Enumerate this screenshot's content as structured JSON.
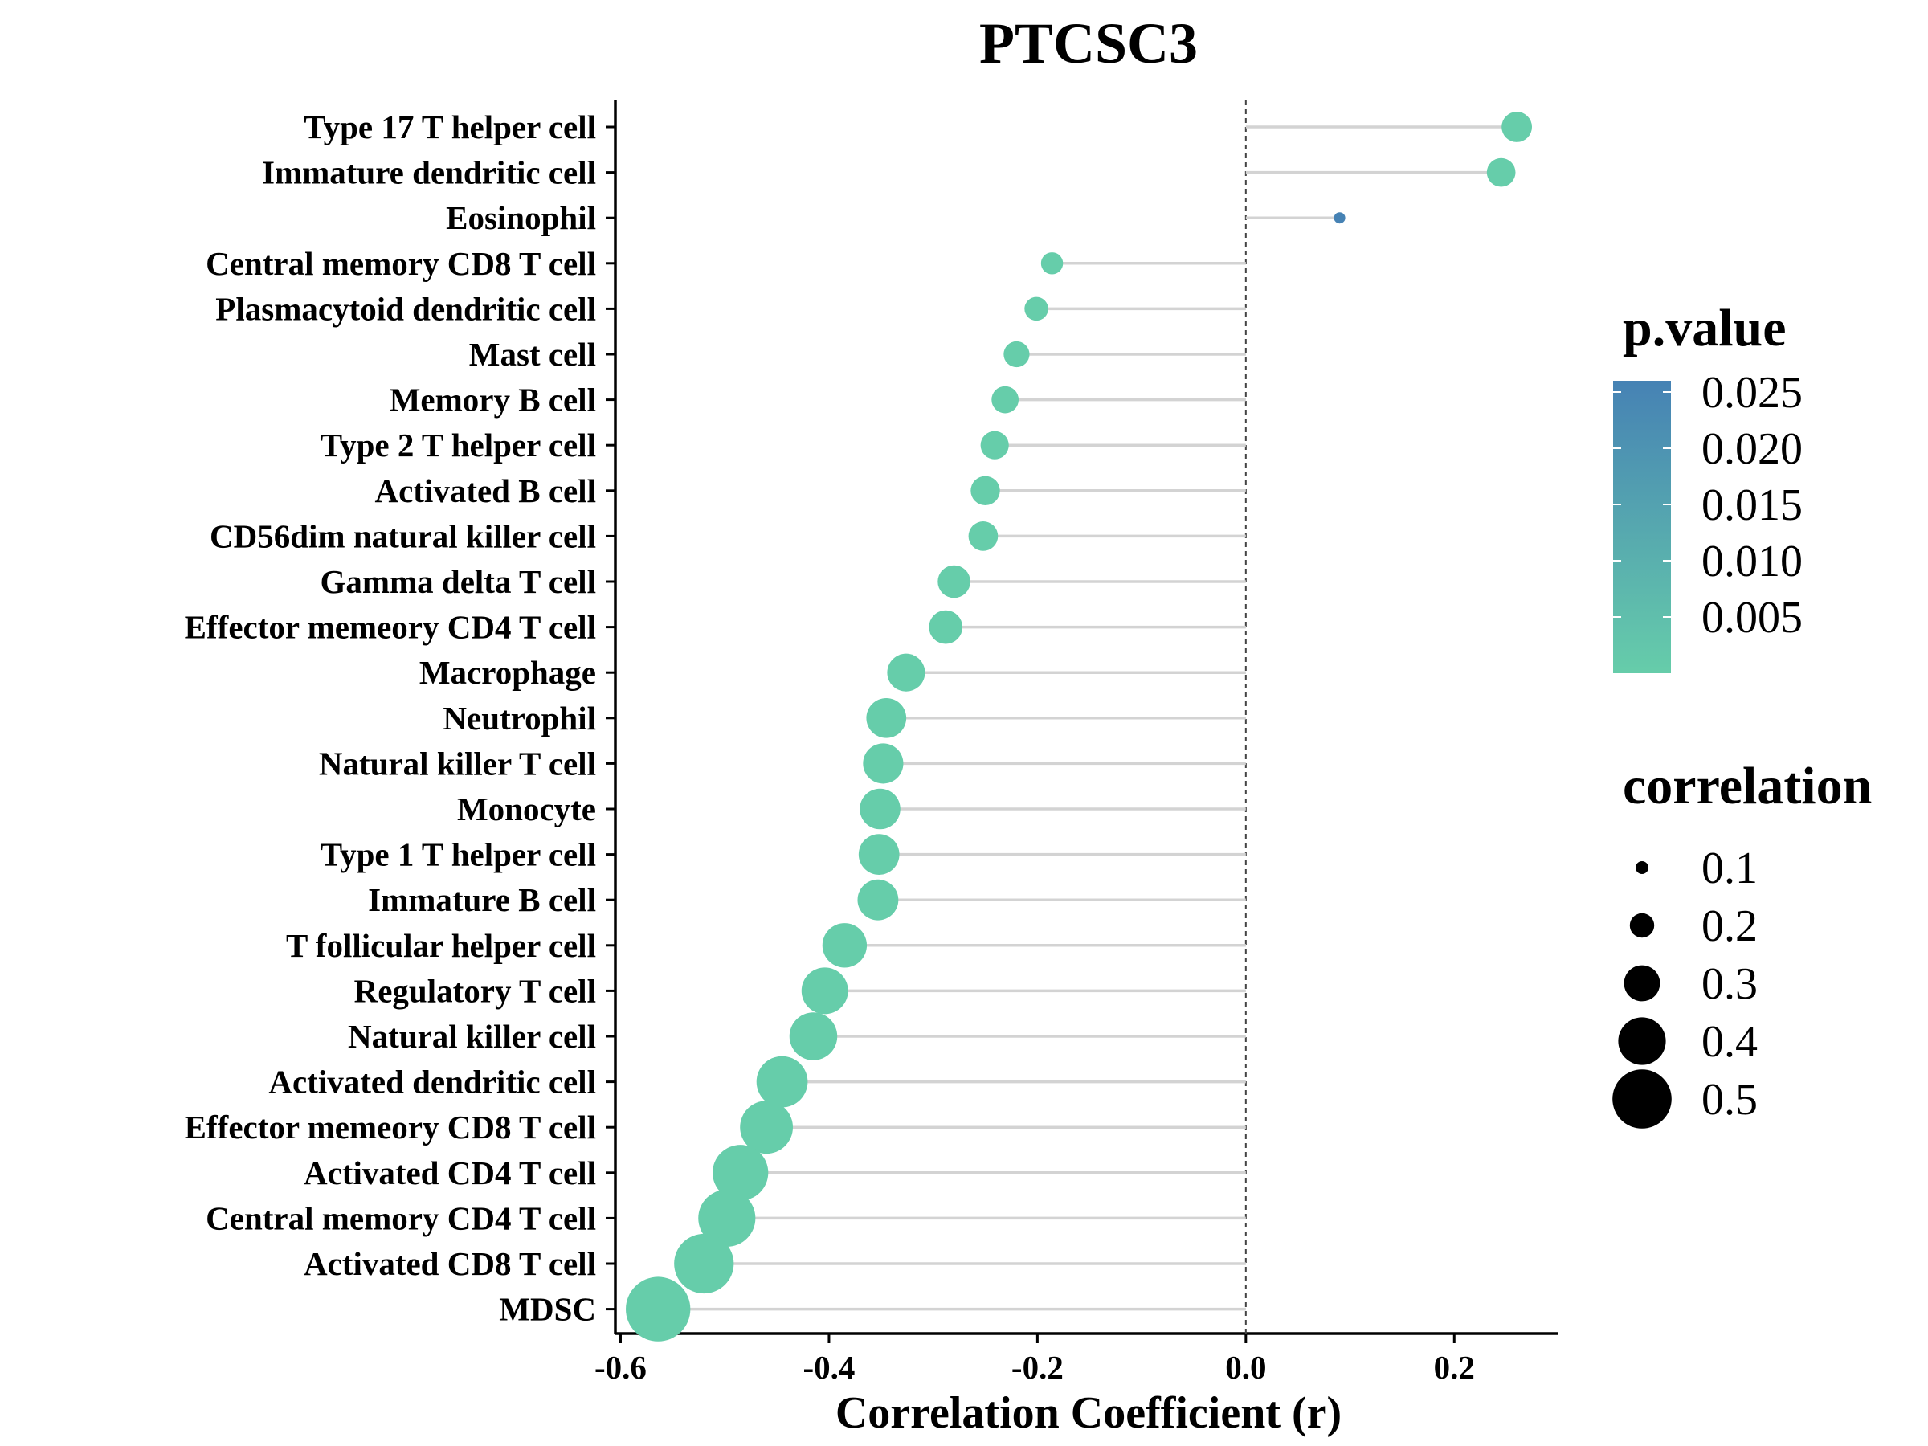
{
  "chart_data": {
    "type": "lollipop",
    "title": "PTCSC3",
    "xlabel": "Correlation Coefficient (r)",
    "ylabel": "",
    "xlim": [
      -0.605,
      0.3
    ],
    "x_ticks": [
      -0.6,
      -0.4,
      -0.2,
      0.0,
      0.2
    ],
    "x_tick_labels": [
      "-0.6",
      "-0.4",
      "-0.2",
      "0.0",
      "0.2"
    ],
    "reference_line": 0.0,
    "categories": [
      "Type 17 T helper cell",
      "Immature dendritic cell",
      "Eosinophil",
      "Central memory CD8 T cell",
      "Plasmacytoid dendritic cell",
      "Mast cell",
      "Memory B cell",
      "Type 2 T helper cell",
      "Activated B cell",
      "CD56dim natural killer cell",
      "Gamma delta T cell",
      "Effector memeory CD4 T cell",
      "Macrophage",
      "Neutrophil",
      "Natural killer T cell",
      "Monocyte",
      "Type 1 T helper cell",
      "Immature  B cell",
      "T follicular helper cell",
      "Regulatory T cell",
      "Natural killer cell",
      "Activated dendritic cell",
      "Effector memeory CD8 T cell",
      "Activated CD4 T cell",
      "Central memory CD4 T cell",
      "Activated CD8 T cell",
      "MDSC"
    ],
    "values": [
      0.26,
      0.245,
      0.09,
      -0.186,
      -0.201,
      -0.22,
      -0.231,
      -0.241,
      -0.25,
      -0.252,
      -0.28,
      -0.288,
      -0.326,
      -0.345,
      -0.348,
      -0.351,
      -0.352,
      -0.353,
      -0.385,
      -0.404,
      -0.415,
      -0.445,
      -0.46,
      -0.485,
      -0.498,
      -0.52,
      -0.564
    ],
    "p_values": [
      0.0,
      0.0,
      0.026,
      0.0,
      0.0,
      0.0,
      0.0,
      0.0,
      0.0,
      0.0,
      0.0,
      0.0,
      0.0,
      0.0,
      0.0,
      0.0,
      0.0,
      0.0,
      0.0,
      0.0,
      0.0,
      0.0,
      0.0,
      0.0,
      0.0,
      0.0,
      0.0
    ],
    "legend_color": {
      "title": "p.value",
      "labels": [
        "0.025",
        "0.020",
        "0.015",
        "0.010",
        "0.005"
      ],
      "values": [
        0.025,
        0.02,
        0.015,
        0.01,
        0.005
      ],
      "range": [
        0.0,
        0.026
      ],
      "color_low": "#66CDAA",
      "color_high": "#4682B4"
    },
    "legend_size": {
      "title": "correlation",
      "labels": [
        "0.1",
        "0.2",
        "0.3",
        "0.4",
        "0.5"
      ],
      "values": [
        0.1,
        0.2,
        0.3,
        0.4,
        0.5
      ]
    },
    "segment_color": "#d3d3d3",
    "legend_placement": "right",
    "grid": false
  }
}
